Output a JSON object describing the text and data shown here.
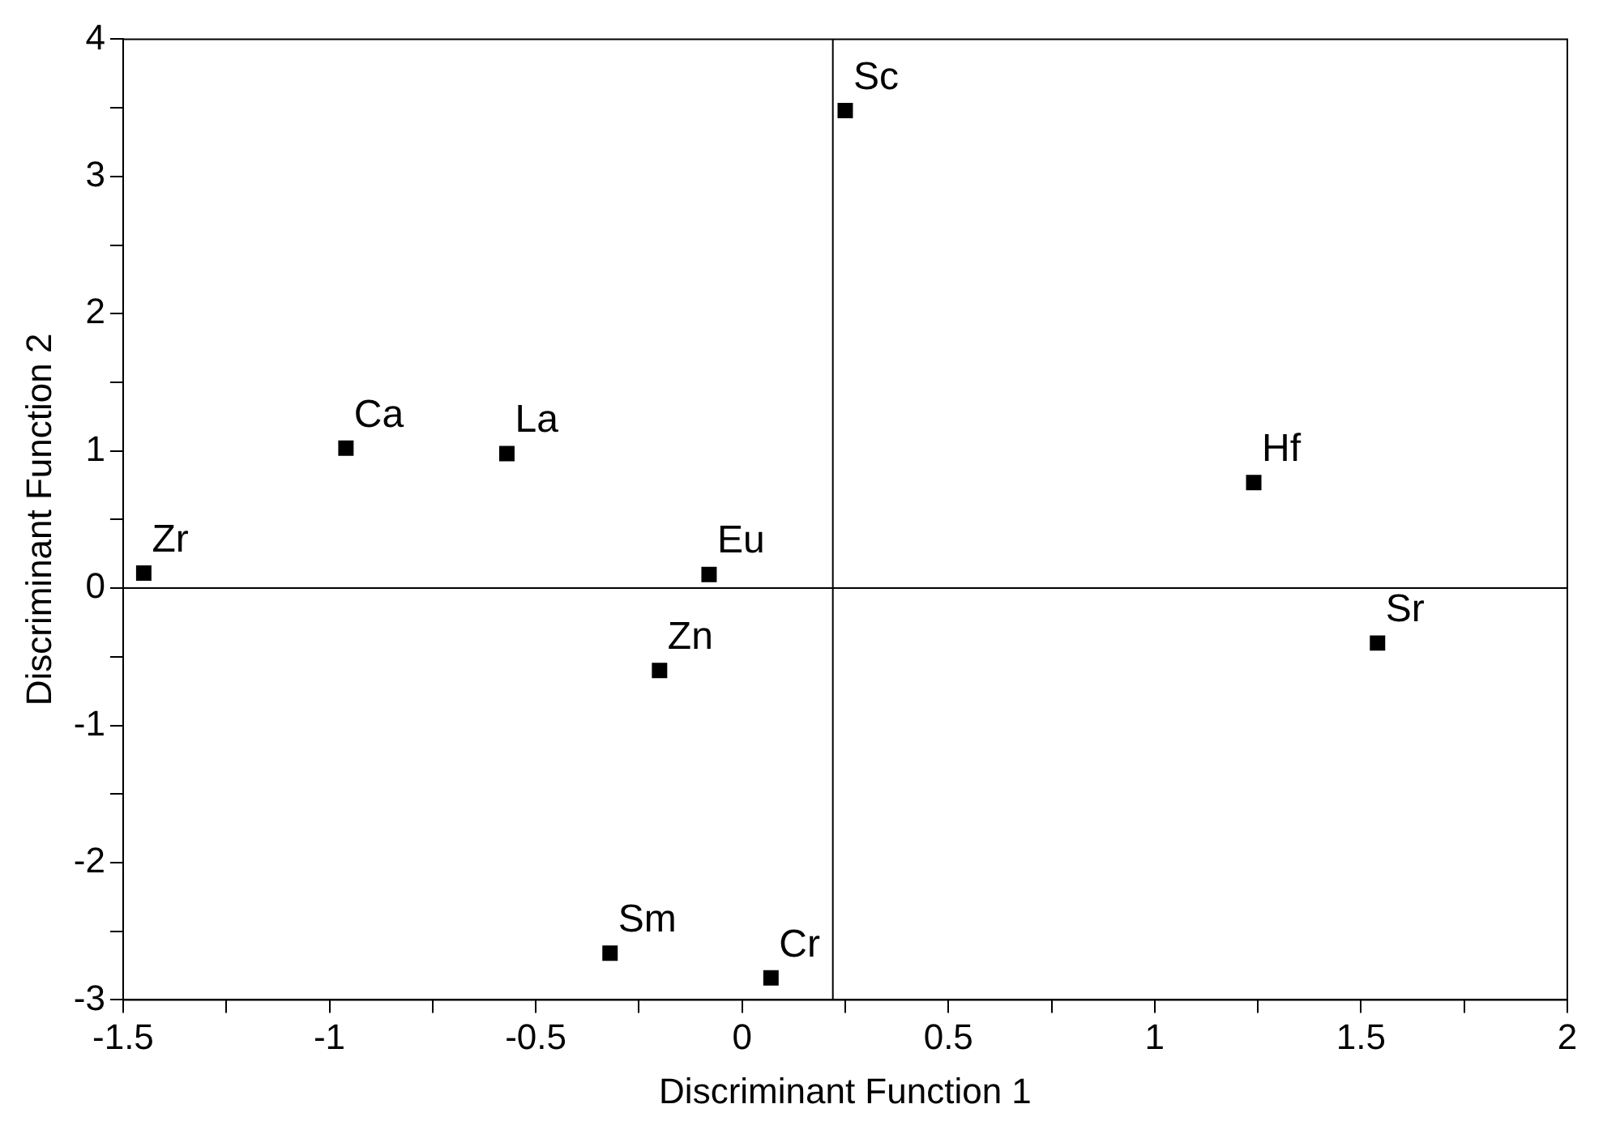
{
  "chart_data": {
    "type": "scatter",
    "xlabel": "Discriminant Function 1",
    "ylabel": "Discriminant Function 2",
    "x": [
      0.25,
      -0.96,
      -0.57,
      -1.45,
      -0.08,
      -0.2,
      1.24,
      1.54,
      -0.32,
      0.07
    ],
    "values": [
      3.48,
      1.02,
      0.98,
      0.11,
      0.1,
      -0.6,
      0.77,
      -0.4,
      -2.66,
      -2.84
    ],
    "color": "#000000",
    "marker": "square",
    "grid": false,
    "xlim": [
      -1.5,
      2
    ],
    "xticks": [
      -1.5,
      {
        "value": -1.25,
        "label": null
      },
      -1,
      {
        "value": -0.75,
        "label": null
      },
      -0.5,
      {
        "value": -0.25,
        "label": null
      },
      0,
      {
        "value": 0.25,
        "label": null
      },
      0.5,
      {
        "value": 0.75,
        "label": null
      },
      1,
      {
        "value": 1.25,
        "label": null
      },
      1.5,
      {
        "value": 1.75,
        "label": null
      },
      2
    ],
    "ylim": [
      -3,
      4
    ],
    "yticks": [
      -3,
      {
        "value": -2.5,
        "label": null
      },
      -2,
      {
        "value": -1.5,
        "label": null
      },
      -1,
      {
        "value": -0.5,
        "label": null
      },
      0,
      {
        "value": 0.5,
        "label": null
      },
      1,
      {
        "value": 1.5,
        "label": null
      },
      2,
      {
        "value": 2.5,
        "label": null
      },
      3,
      {
        "value": 3.5,
        "label": null
      },
      4
    ],
    "ref_lines": [
      {
        "axis": "x",
        "value": 0.22,
        "label": null,
        "color": "#000000"
      },
      {
        "axis": "y",
        "value": 0,
        "label": null,
        "color": "#000000"
      }
    ],
    "annotations": [
      {
        "text": "Sc",
        "x": 0.25,
        "y": 3.48
      },
      {
        "text": "Ca",
        "x": -0.96,
        "y": 1.02
      },
      {
        "text": "La",
        "x": -0.57,
        "y": 0.98
      },
      {
        "text": "Zr",
        "x": -1.45,
        "y": 0.11
      },
      {
        "text": "Eu",
        "x": -0.08,
        "y": 0.1
      },
      {
        "text": "Zn",
        "x": -0.2,
        "y": -0.6
      },
      {
        "text": "Hf",
        "x": 1.24,
        "y": 0.77
      },
      {
        "text": "Sr",
        "x": 1.54,
        "y": -0.4
      },
      {
        "text": "Sm",
        "x": -0.32,
        "y": -2.66
      },
      {
        "text": "Cr",
        "x": 0.07,
        "y": -2.84
      }
    ]
  }
}
